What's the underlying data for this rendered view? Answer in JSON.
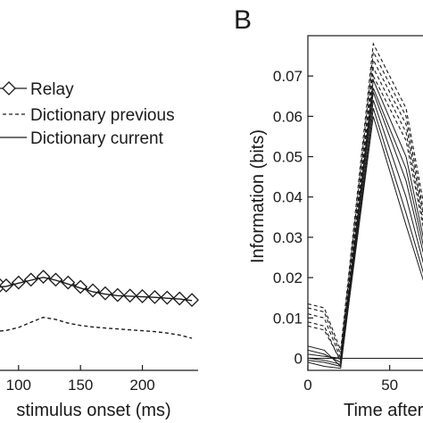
{
  "panel_b_label": "B",
  "chart_data": [
    {
      "type": "line",
      "panel": "A (cropped)",
      "title": "",
      "xlabel": "stimulus onset (ms)",
      "ylabel": "",
      "xlim": [
        85,
        245
      ],
      "x_ticks": [
        {
          "v": 100,
          "label": "100"
        },
        {
          "v": 150,
          "label": "150"
        },
        {
          "v": 200,
          "label": "200"
        }
      ],
      "legend": {
        "placement": "top-right"
      },
      "series": [
        {
          "name": "Relay",
          "style": "solid-diamond",
          "x": [
            85,
            90,
            100,
            110,
            120,
            130,
            140,
            150,
            160,
            170,
            180,
            190,
            200,
            210,
            220,
            230,
            240
          ],
          "y": [
            0.0185,
            0.0185,
            0.0195,
            0.0205,
            0.0215,
            0.0205,
            0.0195,
            0.018,
            0.0168,
            0.0158,
            0.0152,
            0.015,
            0.0148,
            0.0145,
            0.0143,
            0.014,
            0.0135
          ]
        },
        {
          "name": "Dictionary previous",
          "style": "dashed",
          "x": [
            85,
            90,
            100,
            110,
            120,
            130,
            140,
            150,
            160,
            170,
            180,
            190,
            200,
            210,
            220,
            230,
            240
          ],
          "y": [
            0.0028,
            0.003,
            0.004,
            0.0058,
            0.0075,
            0.0068,
            0.0055,
            0.0047,
            0.0042,
            0.0038,
            0.0035,
            0.0032,
            0.0029,
            0.0026,
            0.0021,
            0.0014,
            0.0003
          ]
        },
        {
          "name": "Dictionary current",
          "style": "solid",
          "x": [
            85,
            90,
            100,
            110,
            120,
            130,
            140,
            150,
            160,
            170,
            180,
            190,
            200,
            210,
            220,
            230,
            240
          ],
          "y": [
            0.018,
            0.0182,
            0.0193,
            0.0203,
            0.0213,
            0.0203,
            0.019,
            0.0176,
            0.0163,
            0.0155,
            0.015,
            0.0148,
            0.0146,
            0.0144,
            0.0141,
            0.0138,
            0.0133
          ]
        }
      ]
    },
    {
      "type": "line",
      "panel": "B",
      "title": "",
      "xlabel": "Time after",
      "ylabel": "Information (bits)",
      "xlim": [
        0,
        100
      ],
      "ylim": [
        -0.003,
        0.08
      ],
      "x_ticks": [
        {
          "v": 0,
          "label": "0"
        },
        {
          "v": 50,
          "label": "50"
        }
      ],
      "y_ticks": [
        {
          "v": 0,
          "label": "0"
        },
        {
          "v": 0.01,
          "label": "0.01"
        },
        {
          "v": 0.02,
          "label": "0.02"
        },
        {
          "v": 0.03,
          "label": "0.03"
        },
        {
          "v": 0.04,
          "label": "0.04"
        },
        {
          "v": 0.05,
          "label": "0.05"
        },
        {
          "v": 0.06,
          "label": "0.06"
        },
        {
          "v": 0.07,
          "label": "0.07"
        }
      ],
      "reference_line_y": 0,
      "x": [
        0,
        10,
        20,
        40,
        60,
        80,
        100
      ],
      "series": [
        {
          "style": "dashed",
          "y": [
            0.0135,
            0.0125,
            0.002,
            0.078,
            0.062,
            0.018,
            0.016
          ]
        },
        {
          "style": "dashed",
          "y": [
            0.0125,
            0.0115,
            0.001,
            0.076,
            0.06,
            0.016,
            0.015
          ]
        },
        {
          "style": "dashed",
          "y": [
            0.011,
            0.01,
            0.0,
            0.074,
            0.058,
            0.015,
            0.014
          ]
        },
        {
          "style": "dashed",
          "y": [
            0.009,
            0.008,
            -0.001,
            0.072,
            0.056,
            0.014,
            0.013
          ]
        },
        {
          "style": "dashed",
          "y": [
            0.008,
            0.007,
            -0.0005,
            0.07,
            0.054,
            0.013,
            0.012
          ]
        },
        {
          "style": "solid",
          "y": [
            0.003,
            0.002,
            -0.002,
            0.069,
            0.05,
            0.012,
            0.011
          ]
        },
        {
          "style": "solid",
          "y": [
            0.002,
            0.001,
            -0.001,
            0.067,
            0.047,
            0.011,
            0.01
          ]
        },
        {
          "style": "solid",
          "y": [
            0.001,
            0.0005,
            0.0,
            0.066,
            0.044,
            0.01,
            0.009
          ]
        },
        {
          "style": "solid",
          "y": [
            0.0,
            -0.0005,
            -0.0015,
            0.064,
            0.04,
            0.009,
            0.008
          ]
        },
        {
          "style": "solid",
          "y": [
            -0.001,
            -0.002,
            -0.0025,
            0.062,
            0.036,
            0.008,
            0.007
          ]
        },
        {
          "style": "solid",
          "y": [
            -0.0005,
            -0.001,
            -0.002,
            0.06,
            0.033,
            0.007,
            0.006
          ]
        }
      ]
    }
  ]
}
